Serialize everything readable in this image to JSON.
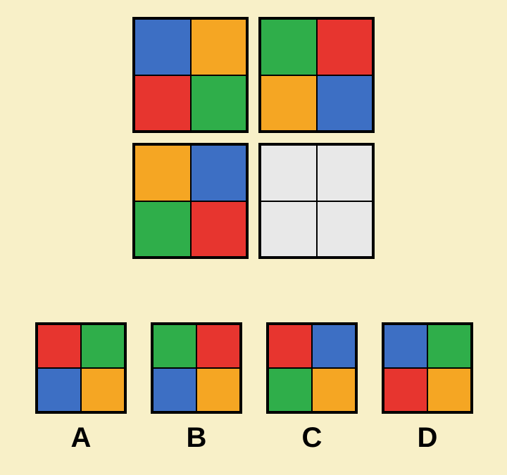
{
  "colors": {
    "blue": "#3d6fc4",
    "orange": "#f5a623",
    "red": "#e7352f",
    "green": "#2fae4a",
    "grey": "#e8e8e8",
    "background": "#f8f0c8",
    "border": "#000000"
  },
  "puzzle": {
    "type": "matrix-reasoning",
    "tiles": [
      {
        "pos": "top-left",
        "cells": [
          "blue",
          "orange",
          "red",
          "green"
        ]
      },
      {
        "pos": "top-right",
        "cells": [
          "green",
          "red",
          "orange",
          "blue"
        ]
      },
      {
        "pos": "bottom-left",
        "cells": [
          "orange",
          "blue",
          "green",
          "red"
        ]
      },
      {
        "pos": "bottom-right",
        "cells": [
          "grey",
          "grey",
          "grey",
          "grey"
        ],
        "missing": true
      }
    ]
  },
  "answers": [
    {
      "label": "A",
      "cells": [
        "red",
        "green",
        "blue",
        "orange"
      ]
    },
    {
      "label": "B",
      "cells": [
        "green",
        "red",
        "blue",
        "orange"
      ]
    },
    {
      "label": "C",
      "cells": [
        "red",
        "blue",
        "green",
        "orange"
      ]
    },
    {
      "label": "D",
      "cells": [
        "blue",
        "green",
        "red",
        "orange"
      ]
    }
  ]
}
